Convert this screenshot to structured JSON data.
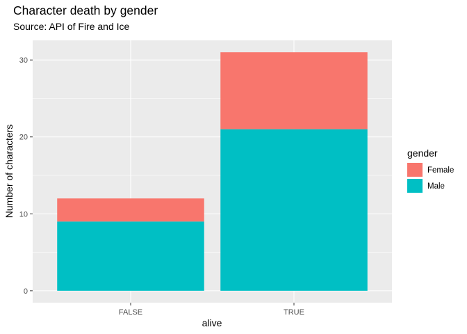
{
  "chart_data": {
    "type": "bar",
    "stacked": true,
    "title": "Character death by gender",
    "subtitle": "Source: API of Fire and Ice",
    "xlabel": "alive",
    "ylabel": "Number of characters",
    "categories": [
      "FALSE",
      "TRUE"
    ],
    "series": [
      {
        "name": "Male",
        "values": [
          9,
          21
        ],
        "color": "#00BFC4"
      },
      {
        "name": "Female",
        "values": [
          3,
          10
        ],
        "color": "#F8766D"
      }
    ],
    "ylim": [
      0,
      32
    ],
    "yticks": [
      0,
      10,
      20,
      30
    ],
    "grid": true,
    "legend": {
      "title": "gender",
      "position": "right",
      "entries": [
        {
          "label": "Female",
          "color": "#F8766D"
        },
        {
          "label": "Male",
          "color": "#00BFC4"
        }
      ]
    },
    "panel_background": "#EBEBEB"
  }
}
